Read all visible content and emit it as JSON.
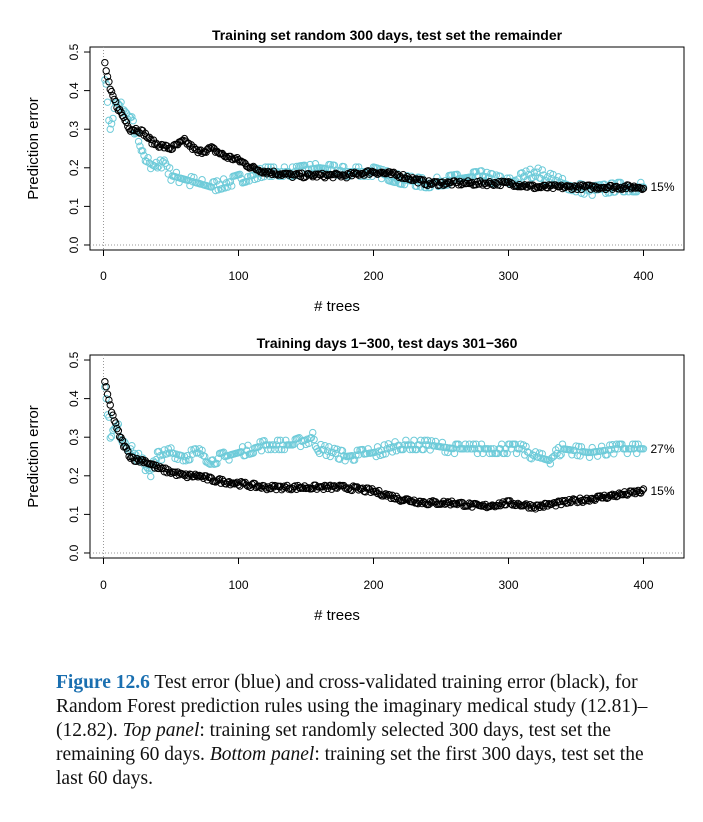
{
  "chart_data": [
    {
      "type": "scatter",
      "title": "Training set random 300 days, test set the remainder",
      "xlabel": "# trees",
      "ylabel": "Prediction error",
      "xlim": [
        0,
        420
      ],
      "ylim": [
        0,
        0.5
      ],
      "x_ticks": [
        "0",
        "100",
        "200",
        "300",
        "400"
      ],
      "y_ticks": [
        "0.0",
        "0.1",
        "0.2",
        "0.3",
        "0.4",
        "0.5"
      ],
      "end_labels": [
        "15%"
      ],
      "series": [
        {
          "color": "#000000",
          "x": [
            1,
            5,
            10,
            15,
            20,
            25,
            30,
            35,
            40,
            50,
            60,
            70,
            80,
            90,
            100,
            110,
            120,
            140,
            160,
            180,
            200,
            220,
            240,
            260,
            280,
            300,
            320,
            340,
            360,
            380,
            400
          ],
          "y": [
            0.47,
            0.4,
            0.36,
            0.33,
            0.3,
            0.3,
            0.29,
            0.27,
            0.26,
            0.25,
            0.27,
            0.24,
            0.25,
            0.23,
            0.22,
            0.2,
            0.19,
            0.18,
            0.18,
            0.18,
            0.19,
            0.18,
            0.16,
            0.16,
            0.16,
            0.16,
            0.15,
            0.15,
            0.15,
            0.15,
            0.15
          ]
        },
        {
          "color": "#6ecbd9",
          "x": [
            1,
            5,
            10,
            15,
            20,
            25,
            30,
            35,
            40,
            45,
            50,
            60,
            70,
            80,
            90,
            100,
            110,
            120,
            140,
            160,
            180,
            200,
            220,
            240,
            260,
            280,
            300,
            320,
            340,
            360,
            380,
            400
          ],
          "y": [
            0.44,
            0.3,
            0.37,
            0.35,
            0.33,
            0.28,
            0.22,
            0.21,
            0.2,
            0.22,
            0.18,
            0.17,
            0.16,
            0.15,
            0.16,
            0.17,
            0.18,
            0.19,
            0.19,
            0.2,
            0.19,
            0.19,
            0.17,
            0.16,
            0.17,
            0.18,
            0.16,
            0.19,
            0.16,
            0.14,
            0.15,
            0.15
          ]
        }
      ]
    },
    {
      "type": "scatter",
      "title": "Training days 1−300, test days 301−360",
      "xlabel": "# trees",
      "ylabel": "Prediction error",
      "xlim": [
        0,
        420
      ],
      "ylim": [
        0,
        0.5
      ],
      "x_ticks": [
        "0",
        "100",
        "200",
        "300",
        "400"
      ],
      "y_ticks": [
        "0.0",
        "0.1",
        "0.2",
        "0.3",
        "0.4",
        "0.5"
      ],
      "end_labels": [
        "27%",
        "15%"
      ],
      "series": [
        {
          "color": "#000000",
          "x": [
            1,
            5,
            10,
            15,
            20,
            25,
            30,
            40,
            50,
            60,
            70,
            80,
            100,
            120,
            140,
            160,
            180,
            200,
            220,
            240,
            260,
            280,
            300,
            320,
            340,
            360,
            380,
            400
          ],
          "y": [
            0.44,
            0.38,
            0.32,
            0.28,
            0.25,
            0.24,
            0.24,
            0.22,
            0.21,
            0.2,
            0.2,
            0.19,
            0.18,
            0.17,
            0.17,
            0.17,
            0.17,
            0.16,
            0.14,
            0.13,
            0.13,
            0.12,
            0.13,
            0.12,
            0.13,
            0.14,
            0.15,
            0.16
          ]
        },
        {
          "color": "#6ecbd9",
          "x": [
            1,
            5,
            10,
            15,
            20,
            25,
            30,
            35,
            40,
            50,
            60,
            70,
            80,
            90,
            100,
            110,
            120,
            140,
            155,
            160,
            180,
            200,
            220,
            240,
            260,
            280,
            300,
            310,
            320,
            330,
            340,
            360,
            380,
            400
          ],
          "y": [
            0.43,
            0.31,
            0.33,
            0.29,
            0.27,
            0.25,
            0.23,
            0.21,
            0.25,
            0.26,
            0.25,
            0.26,
            0.24,
            0.25,
            0.26,
            0.27,
            0.28,
            0.28,
            0.3,
            0.27,
            0.25,
            0.26,
            0.28,
            0.28,
            0.27,
            0.27,
            0.27,
            0.27,
            0.25,
            0.24,
            0.27,
            0.26,
            0.27,
            0.27
          ]
        }
      ]
    }
  ],
  "caption": {
    "figure_label": "Figure 12.6",
    "text_1": " Test error (blue) and cross-validated training error (black), for Random Forest prediction rules using the imaginary medical study (12.81)–(12.82). ",
    "top_panel_label": "Top panel",
    "text_2": ": training set randomly selected 300 days, test set the remaining 60 days. ",
    "bottom_panel_label": "Bottom panel",
    "text_3": ": training set the first 300 days, test set the last 60 days."
  }
}
